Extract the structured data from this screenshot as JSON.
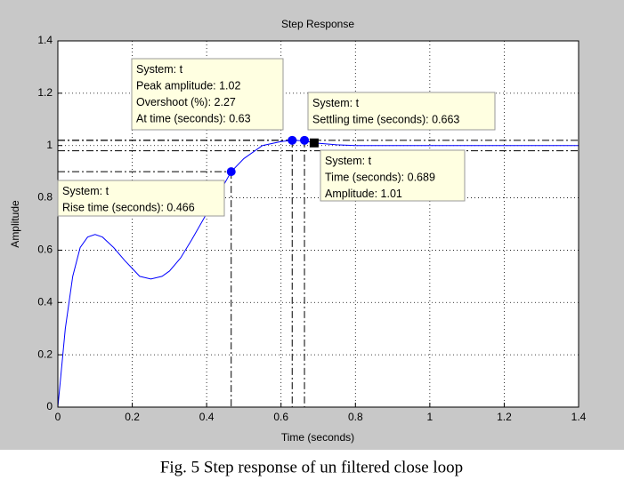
{
  "chart_data": {
    "type": "line",
    "title": "Step Response",
    "x_label": "Time (seconds)",
    "y_label": "Amplitude",
    "x": [
      0,
      0.02,
      0.04,
      0.06,
      0.08,
      0.1,
      0.12,
      0.15,
      0.18,
      0.2,
      0.22,
      0.25,
      0.28,
      0.3,
      0.33,
      0.36,
      0.4,
      0.43,
      0.466,
      0.5,
      0.55,
      0.6,
      0.63,
      0.663,
      0.689,
      0.75,
      0.8,
      0.9,
      1.0,
      1.1,
      1.2,
      1.3,
      1.4
    ],
    "values": [
      0,
      0.3,
      0.5,
      0.61,
      0.65,
      0.66,
      0.65,
      0.61,
      0.56,
      0.53,
      0.5,
      0.49,
      0.5,
      0.52,
      0.57,
      0.64,
      0.74,
      0.81,
      0.9,
      0.95,
      1.0,
      1.015,
      1.02,
      1.018,
      1.01,
      1.003,
      1.0,
      1.0,
      1.0,
      1.0,
      1.0,
      1.0,
      1.0
    ],
    "color": "#0000ff",
    "xlim": [
      0,
      1.4
    ],
    "ylim": [
      0,
      1.4
    ],
    "xticks": [
      0,
      0.2,
      0.4,
      0.6,
      0.8,
      1,
      1.2,
      1.4
    ],
    "yticks": [
      0,
      0.2,
      0.4,
      0.6,
      0.8,
      1,
      1.2,
      1.4
    ],
    "grid": true,
    "markers": [
      {
        "x": 0.466,
        "y": 0.9,
        "shape": "circle"
      },
      {
        "x": 0.63,
        "y": 1.02,
        "shape": "circle"
      },
      {
        "x": 0.663,
        "y": 1.02,
        "shape": "circle"
      },
      {
        "x": 0.689,
        "y": 1.01,
        "shape": "square"
      }
    ],
    "settling_band": [
      0.98,
      1.02
    ],
    "datatips": [
      {
        "lines": [
          "System: t",
          "Rise time (seconds): 0.466"
        ]
      },
      {
        "lines": [
          "System: t",
          "Peak amplitude: 1.02",
          "Overshoot (%): 2.27",
          "At time (seconds): 0.63"
        ]
      },
      {
        "lines": [
          "System: t",
          "Settling time (seconds): 0.663"
        ]
      },
      {
        "lines": [
          "System: t",
          "Time (seconds): 0.689",
          "Amplitude: 1.01"
        ]
      }
    ]
  },
  "caption": "Fig. 5 Step response of un filtered close loop"
}
